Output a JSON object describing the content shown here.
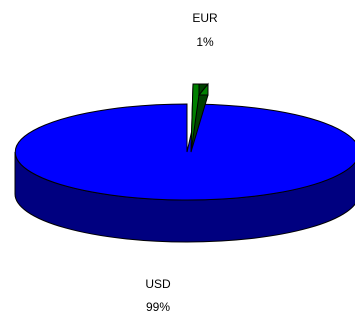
{
  "chart_data": {
    "type": "pie",
    "three_d": true,
    "categories": [
      "USD",
      "EUR"
    ],
    "values": [
      99,
      1
    ],
    "value_labels": [
      "99%",
      "1%"
    ],
    "colors": {
      "USD": {
        "top": "#0000ff",
        "side": "#000080",
        "outline": "#000000"
      },
      "EUR": {
        "top": "#008000",
        "side": "#004000",
        "outline": "#000000"
      }
    },
    "exploded_slice": "EUR",
    "legend": "none"
  }
}
